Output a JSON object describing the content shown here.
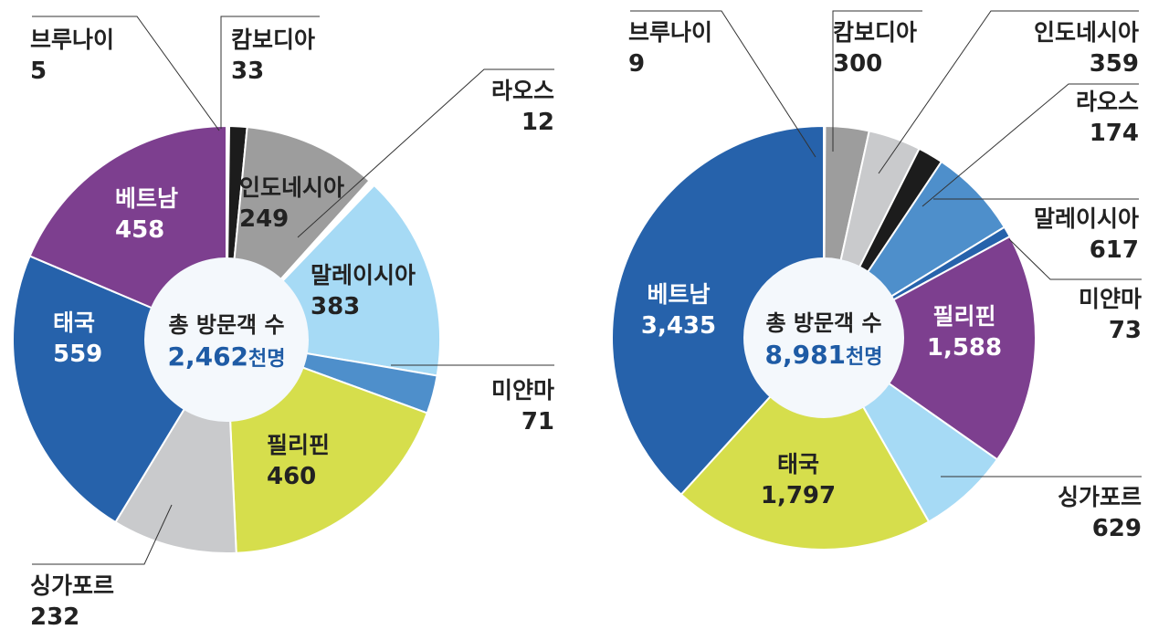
{
  "chart_data": [
    {
      "type": "pie",
      "variant": "donut",
      "center_label": "총 방문객 수",
      "total_number": "2,462",
      "total_unit": "천명",
      "slices": [
        {
          "label": "브루나이",
          "value": 5,
          "display": "5",
          "color": "#ffffff"
        },
        {
          "label": "캄보디아",
          "value": 33,
          "display": "33",
          "color": "#1c1c1c"
        },
        {
          "label": "인도네시아",
          "value": 249,
          "display": "249",
          "color": "#9d9d9d"
        },
        {
          "label": "라오스",
          "value": 12,
          "display": "12",
          "color": "#ffffff"
        },
        {
          "label": "말레이시아",
          "value": 383,
          "display": "383",
          "color": "#a6daf5"
        },
        {
          "label": "미얀마",
          "value": 71,
          "display": "71",
          "color": "#4e8fcb"
        },
        {
          "label": "필리핀",
          "value": 460,
          "display": "460",
          "color": "#d6de4c"
        },
        {
          "label": "싱가포르",
          "value": 232,
          "display": "232",
          "color": "#c9cacc"
        },
        {
          "label": "태국",
          "value": 559,
          "display": "559",
          "color": "#2662ab"
        },
        {
          "label": "베트남",
          "value": 458,
          "display": "458",
          "color": "#7d3f8f"
        }
      ]
    },
    {
      "type": "pie",
      "variant": "donut",
      "center_label": "총 방문객 수",
      "total_number": "8,981",
      "total_unit": "천명",
      "slices": [
        {
          "label": "브루나이",
          "value": 9,
          "display": "9",
          "color": "#ffffff"
        },
        {
          "label": "캄보디아",
          "value": 300,
          "display": "300",
          "color": "#9d9d9d"
        },
        {
          "label": "인도네시아",
          "value": 359,
          "display": "359",
          "color": "#c9cacc"
        },
        {
          "label": "라오스",
          "value": 174,
          "display": "174",
          "color": "#1c1c1c"
        },
        {
          "label": "말레이시아",
          "value": 617,
          "display": "617",
          "color": "#4e8fcb"
        },
        {
          "label": "미얀마",
          "value": 73,
          "display": "73",
          "color": "#2662ab"
        },
        {
          "label": "필리핀",
          "value": 1588,
          "display": "1,588",
          "color": "#7d3f8f"
        },
        {
          "label": "싱가포르",
          "value": 629,
          "display": "629",
          "color": "#a6daf5"
        },
        {
          "label": "태국",
          "value": 1797,
          "display": "1,797",
          "color": "#d6de4c"
        },
        {
          "label": "베트남",
          "value": 3435,
          "display": "3,435",
          "color": "#2662ab"
        }
      ]
    }
  ],
  "colors": {
    "total_text": "#1e5ba5",
    "center_fill": "#f4f8fc",
    "leader": "#333333",
    "dark_text": "#222222",
    "light_text": "#ffffff"
  }
}
